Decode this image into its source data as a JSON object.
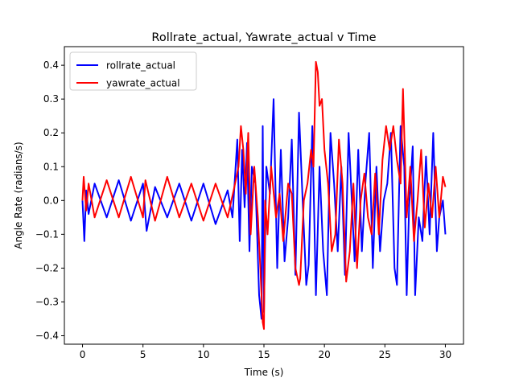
{
  "chart_data": {
    "type": "line",
    "title": "Rollrate_actual, Yawrate_actual  v Time",
    "xlabel": "Time (s)",
    "ylabel": "Angle Rate (radians/s)",
    "xlim": [
      -1.5,
      31.5
    ],
    "ylim": [
      -0.425,
      0.455
    ],
    "xticks": [
      0,
      5,
      10,
      15,
      20,
      25,
      30
    ],
    "yticks": [
      -0.4,
      -0.3,
      -0.2,
      -0.1,
      0.0,
      0.1,
      0.2,
      0.3,
      0.4
    ],
    "ytick_labels": [
      "−0.4",
      "−0.3",
      "−0.2",
      "−0.1",
      "0.0",
      "0.1",
      "0.2",
      "0.3",
      "0.4"
    ],
    "grid": false,
    "legend_position": "upper-left",
    "series": [
      {
        "name": "rollrate_actual",
        "color": "#0000ff",
        "x": [
          0.0,
          0.15,
          0.3,
          0.5,
          1.0,
          2.0,
          3.0,
          4.0,
          5.0,
          5.3,
          6.0,
          7.0,
          8.0,
          9.0,
          10.0,
          11.0,
          12.0,
          12.4,
          12.8,
          13.0,
          13.2,
          13.4,
          13.6,
          13.8,
          14.0,
          14.3,
          14.6,
          14.8,
          14.9,
          15.0,
          15.2,
          15.5,
          15.8,
          16.1,
          16.4,
          16.7,
          17.0,
          17.3,
          17.6,
          17.9,
          18.2,
          18.5,
          18.7,
          19.0,
          19.3,
          19.6,
          19.9,
          20.2,
          20.5,
          20.8,
          21.1,
          21.4,
          21.7,
          22.0,
          22.2,
          22.5,
          22.8,
          23.1,
          23.4,
          23.7,
          24.0,
          24.3,
          24.6,
          24.9,
          25.2,
          25.5,
          25.8,
          26.0,
          26.3,
          26.6,
          26.8,
          27.0,
          27.3,
          27.5,
          27.8,
          28.1,
          28.4,
          28.7,
          29.0,
          29.3,
          29.5,
          29.8,
          30.0
        ],
        "y": [
          0.0,
          -0.12,
          0.03,
          -0.04,
          0.05,
          -0.05,
          0.06,
          -0.06,
          0.05,
          -0.09,
          0.04,
          -0.05,
          0.05,
          -0.06,
          0.05,
          -0.07,
          0.03,
          -0.05,
          0.18,
          -0.12,
          0.15,
          -0.02,
          0.17,
          -0.15,
          0.1,
          0.05,
          -0.28,
          -0.35,
          0.22,
          -0.33,
          0.1,
          0.02,
          0.3,
          -0.2,
          0.15,
          -0.18,
          -0.05,
          0.18,
          -0.22,
          0.26,
          0.0,
          -0.25,
          -0.19,
          0.22,
          -0.28,
          0.1,
          -0.15,
          -0.28,
          0.2,
          0.05,
          -0.15,
          0.1,
          -0.22,
          0.2,
          0.05,
          -0.18,
          0.15,
          -0.15,
          0.06,
          0.2,
          -0.2,
          0.1,
          -0.15,
          0.0,
          0.05,
          0.2,
          -0.2,
          -0.25,
          0.22,
          0.1,
          -0.28,
          -0.02,
          0.16,
          -0.28,
          -0.05,
          -0.12,
          0.13,
          -0.1,
          0.2,
          -0.15,
          -0.05,
          0.0,
          -0.1
        ]
      },
      {
        "name": "yawrate_actual",
        "color": "#ff0000",
        "x": [
          0.0,
          0.1,
          0.3,
          0.5,
          1.0,
          2.0,
          3.0,
          4.0,
          5.0,
          5.2,
          6.0,
          7.0,
          8.0,
          9.0,
          10.0,
          11.0,
          12.0,
          12.5,
          12.9,
          13.1,
          13.3,
          13.5,
          13.7,
          13.9,
          14.2,
          14.5,
          14.7,
          14.9,
          15.0,
          15.1,
          15.3,
          15.6,
          16.0,
          16.3,
          16.6,
          17.0,
          17.3,
          17.6,
          17.9,
          18.0,
          18.3,
          18.6,
          18.9,
          19.1,
          19.3,
          19.45,
          19.6,
          19.8,
          20.0,
          20.3,
          20.6,
          20.9,
          21.2,
          21.5,
          21.8,
          22.1,
          22.4,
          22.7,
          23.0,
          23.3,
          23.6,
          23.9,
          24.2,
          24.5,
          24.8,
          25.1,
          25.4,
          25.7,
          26.0,
          26.3,
          26.5,
          26.8,
          27.1,
          27.4,
          27.7,
          28.0,
          28.3,
          28.6,
          28.9,
          29.2,
          29.5,
          29.8,
          30.0
        ],
        "y": [
          0.0,
          0.07,
          -0.03,
          0.05,
          -0.05,
          0.06,
          -0.05,
          0.07,
          -0.05,
          0.06,
          -0.06,
          0.07,
          -0.05,
          0.05,
          -0.06,
          0.05,
          -0.05,
          0.03,
          0.1,
          0.22,
          0.15,
          0.02,
          0.2,
          -0.1,
          0.1,
          -0.05,
          -0.2,
          -0.36,
          -0.38,
          0.0,
          -0.1,
          0.1,
          -0.05,
          0.02,
          -0.12,
          0.05,
          0.02,
          -0.2,
          -0.25,
          -0.23,
          0.0,
          0.05,
          0.15,
          0.1,
          0.41,
          0.38,
          0.28,
          0.3,
          0.15,
          0.05,
          -0.15,
          -0.1,
          0.18,
          0.05,
          -0.24,
          -0.15,
          0.05,
          -0.2,
          0.0,
          0.08,
          -0.05,
          -0.1,
          0.08,
          -0.1,
          0.12,
          0.22,
          0.15,
          0.22,
          0.12,
          0.05,
          0.33,
          -0.05,
          0.1,
          -0.12,
          0.0,
          0.15,
          -0.08,
          0.05,
          -0.05,
          0.1,
          -0.05,
          0.07,
          0.04
        ]
      }
    ]
  }
}
